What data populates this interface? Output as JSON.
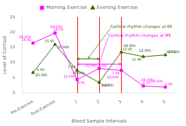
{
  "chart_data": {
    "type": "line",
    "categories": [
      "Pre-Exercise",
      "Post-Exercise",
      "1",
      "2",
      "3",
      "4",
      "5"
    ],
    "series": [
      {
        "name": "Morning Exercise",
        "color": "#ff00ff",
        "marker": "square",
        "values": [
          16.42,
          19.74,
          4.41,
          8.06,
          7.44,
          2.33,
          1.92
        ],
        "times": [
          "08:00h",
          "09:00h",
          "12:00h",
          "16:00h",
          "24:00h",
          "04:00h",
          "08:00h"
        ]
      },
      {
        "name": "Evening Exercise",
        "color": "#2d6a00",
        "marker": "triangle",
        "values": [
          6.69,
          15.95,
          7.44,
          3.47,
          13.45,
          11.96,
          12.51
        ],
        "times": [
          "20:00h",
          "21:00h",
          "00:00h",
          "04:00h",
          "08:00h",
          "12:00h",
          "16:00h"
        ],
        "time_color": "#333333"
      }
    ],
    "xlabel": "Blood Sample Intervals",
    "ylabel": "Level of Cortisol",
    "ylim": [
      0,
      25
    ],
    "yticks": [
      0,
      5,
      10,
      15,
      20,
      25
    ],
    "grid": false,
    "legend": "top",
    "data_labels": true,
    "vlines": {
      "at": [
        "1",
        "2",
        "3"
      ],
      "color": "#ff0000"
    },
    "annotations": [
      {
        "text": "Cortisol rhythm changes at EE",
        "color": "#2d6a00",
        "from": "1",
        "to": "2",
        "y": 11.2
      },
      {
        "text": "Cortisol rhythm changes at ME",
        "color": "#ff00ff",
        "from": "1",
        "to": "3",
        "y": 9.5
      }
    ]
  }
}
